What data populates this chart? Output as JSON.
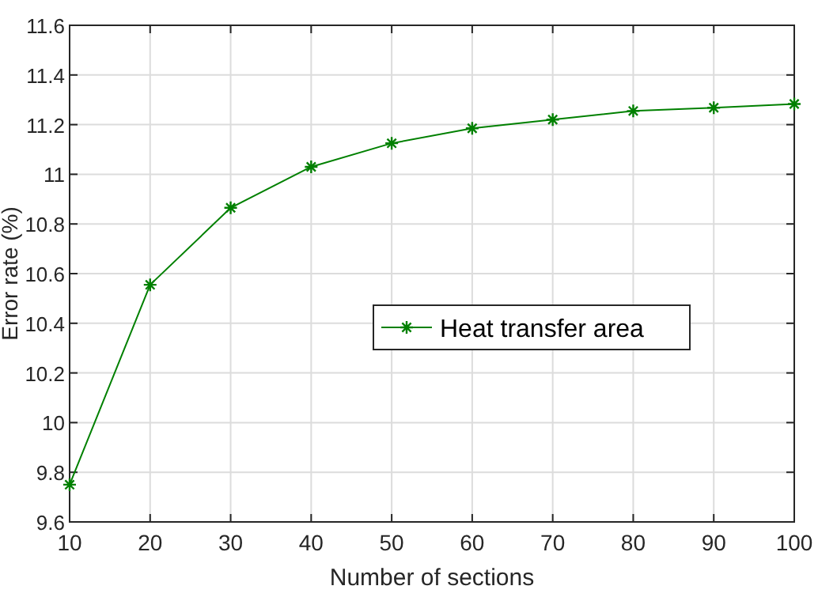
{
  "chart_data": {
    "type": "line",
    "xlabel": "Number of sections",
    "ylabel": "Error rate (%)",
    "x": [
      10,
      20,
      30,
      40,
      50,
      60,
      70,
      80,
      90,
      100
    ],
    "series": [
      {
        "name": "Heat transfer area",
        "color": "#008000",
        "values": [
          9.75,
          10.555,
          10.865,
          11.03,
          11.125,
          11.185,
          11.22,
          11.255,
          11.268,
          11.283
        ]
      }
    ],
    "xlim": [
      10,
      100
    ],
    "xticks": [
      10,
      20,
      30,
      40,
      50,
      60,
      70,
      80,
      90,
      100
    ],
    "ylim": [
      9.6,
      11.6
    ],
    "yticks": [
      9.6,
      9.8,
      10,
      10.2,
      10.4,
      10.6,
      10.8,
      11,
      11.2,
      11.4,
      11.6
    ],
    "grid": true,
    "legend": "right",
    "marker": "cross",
    "line_style": "solid"
  }
}
